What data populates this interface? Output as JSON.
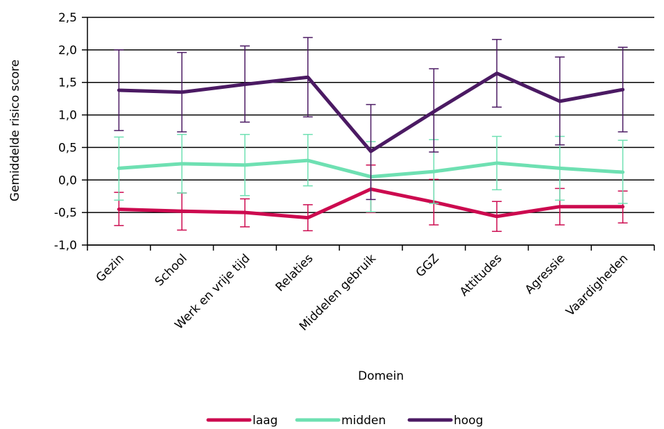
{
  "chart_data": {
    "type": "line",
    "xlabel": "Domein",
    "ylabel": "Gemiddelde risico score",
    "ylim": [
      -1.0,
      2.5
    ],
    "yticks": [
      -1.0,
      -0.5,
      0.0,
      0.5,
      1.0,
      1.5,
      2.0,
      2.5
    ],
    "ytick_labels": [
      "-1,0",
      "-0,5",
      "0,0",
      "0,5",
      "1,0",
      "1,5",
      "2,0",
      "2,5"
    ],
    "grid": "horizontal",
    "legend_position": "bottom",
    "categories": [
      "Gezin",
      "School",
      "Werk en vrije tijd",
      "Relaties",
      "Middelen gebruik",
      "GGZ",
      "Attitudes",
      "Agressie",
      "Vaardigheden"
    ],
    "series": [
      {
        "name": "laag",
        "color": "#cc0a4f",
        "values": [
          -0.45,
          -0.48,
          -0.5,
          -0.58,
          -0.14,
          -0.34,
          -0.56,
          -0.41,
          -0.41
        ],
        "error_low": [
          -0.7,
          -0.77,
          -0.72,
          -0.78,
          -0.5,
          -0.69,
          -0.79,
          -0.69,
          -0.66
        ],
        "error_high": [
          -0.19,
          -0.2,
          -0.29,
          -0.38,
          0.23,
          0.01,
          -0.33,
          -0.13,
          -0.17
        ]
      },
      {
        "name": "midden",
        "color": "#6ee0b2",
        "values": [
          0.18,
          0.25,
          0.23,
          0.3,
          0.05,
          0.13,
          0.26,
          0.18,
          0.12
        ],
        "error_low": [
          -0.31,
          -0.2,
          -0.24,
          -0.09,
          -0.49,
          -0.36,
          -0.15,
          -0.31,
          -0.36
        ],
        "error_high": [
          0.66,
          0.7,
          0.7,
          0.7,
          0.59,
          0.62,
          0.67,
          0.67,
          0.61
        ]
      },
      {
        "name": "hoog",
        "color": "#4b1a63",
        "values": [
          1.38,
          1.35,
          1.47,
          1.58,
          0.44,
          1.05,
          1.64,
          1.21,
          1.39
        ],
        "error_low": [
          0.76,
          0.74,
          0.89,
          0.97,
          -0.3,
          0.43,
          1.12,
          0.54,
          0.74
        ],
        "error_high": [
          2.0,
          1.96,
          2.06,
          2.19,
          1.16,
          1.71,
          2.16,
          1.89,
          2.04
        ]
      }
    ]
  }
}
